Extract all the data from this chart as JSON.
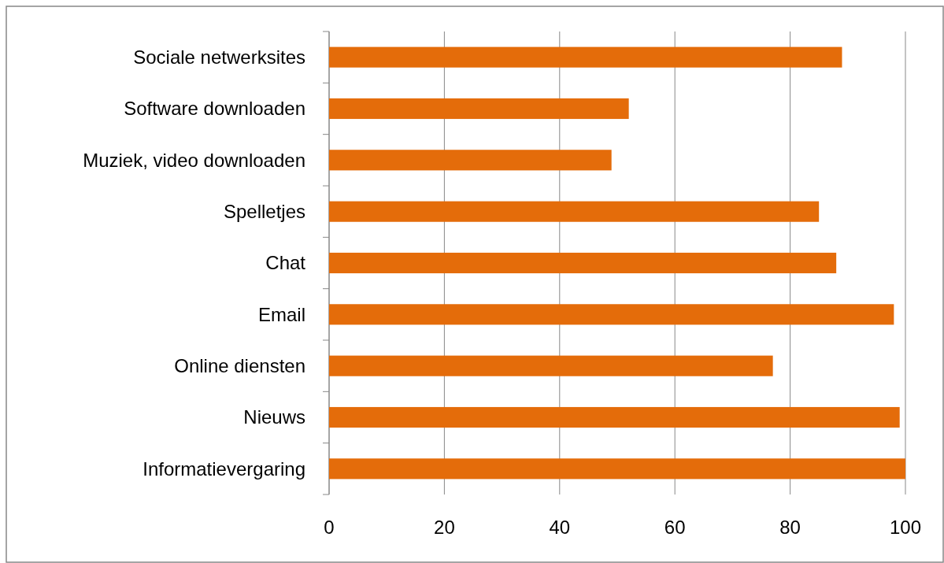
{
  "chart_data": {
    "type": "bar",
    "orientation": "horizontal",
    "categories": [
      "Sociale netwerksites",
      "Software downloaden",
      "Muziek, video downloaden",
      "Spelletjes",
      "Chat",
      "Email",
      "Online diensten",
      "Nieuws",
      "Informatievergaring"
    ],
    "values": [
      89,
      52,
      49,
      85,
      88,
      98,
      77,
      99,
      100
    ],
    "color": "#e46c0a",
    "xlim": [
      0,
      100
    ],
    "xticks": [
      0,
      20,
      40,
      60,
      80,
      100
    ],
    "grid": "x"
  }
}
